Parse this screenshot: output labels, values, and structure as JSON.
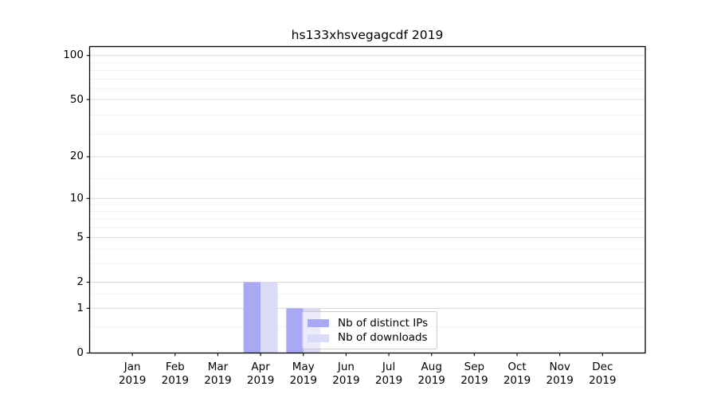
{
  "chart_data": {
    "type": "bar",
    "title": "hs133xhsvegagcdf 2019",
    "categories": [
      "Jan 2019",
      "Feb 2019",
      "Mar 2019",
      "Apr 2019",
      "May 2019",
      "Jun 2019",
      "Jul 2019",
      "Aug 2019",
      "Sep 2019",
      "Oct 2019",
      "Nov 2019",
      "Dec 2019"
    ],
    "series": [
      {
        "name": "Nb of distinct IPs",
        "color": "#a8a8f3",
        "values": [
          0,
          0,
          0,
          2,
          1,
          0,
          0,
          0,
          0,
          0,
          0,
          0
        ]
      },
      {
        "name": "Nb of downloads",
        "color": "#dbdbf8",
        "values": [
          0,
          0,
          0,
          2,
          1,
          0,
          0,
          0,
          0,
          0,
          0,
          0
        ]
      }
    ],
    "xlabel": "",
    "ylabel": "",
    "y_axis": {
      "scale": "log1p",
      "ticks": [
        0,
        1,
        2,
        5,
        10,
        20,
        50,
        100
      ],
      "minor_ticks": [
        0.5,
        1.5,
        3,
        4,
        6,
        7,
        8,
        9,
        14,
        29,
        39,
        59,
        69,
        79,
        89
      ],
      "ylim": [
        0,
        115
      ]
    },
    "grid": "horizontal",
    "bar_width_fraction": 0.4,
    "legend_position": "lower center"
  },
  "colors": {
    "grid_major": "#d9d9d9",
    "grid_minor": "#efefef",
    "axis_frame": "#000000",
    "legend_border": "#c9c9c9",
    "text": "#000000"
  }
}
